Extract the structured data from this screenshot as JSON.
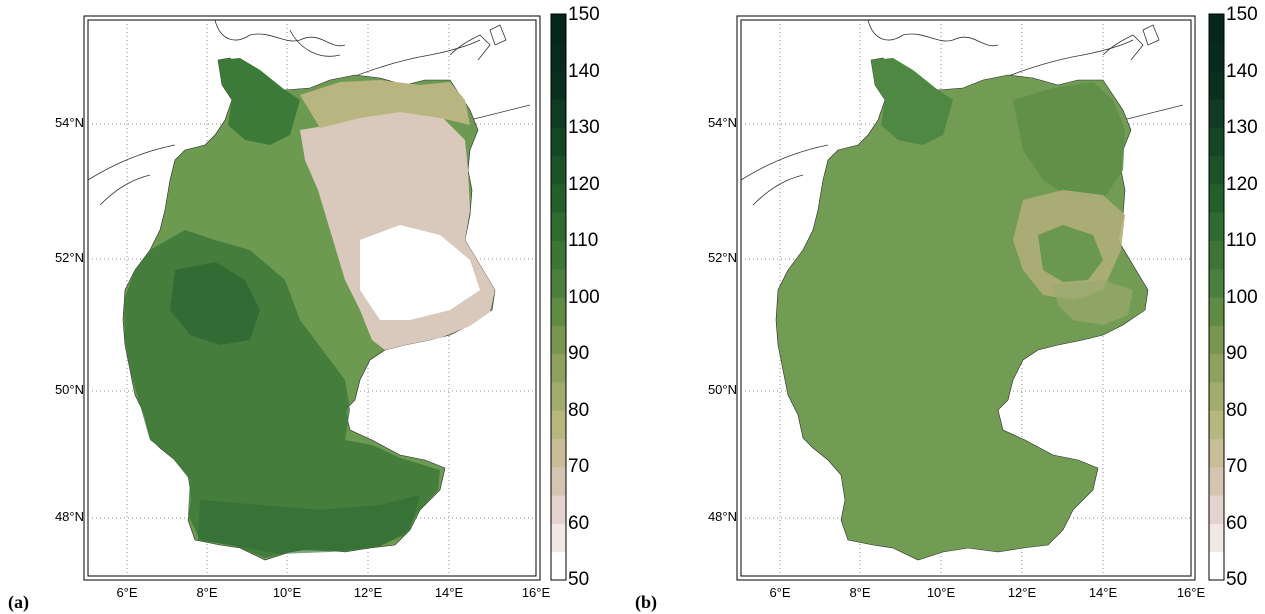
{
  "panels": [
    {
      "label": "(a)",
      "lat_ticks": [
        "54°N",
        "52°N",
        "50°N",
        "48°N"
      ],
      "lon_ticks": [
        "6°E",
        "8°E",
        "10°E",
        "12°E",
        "14°E",
        "16°E"
      ],
      "colorbar_ticks": [
        "150",
        "140",
        "130",
        "120",
        "110",
        "100",
        "90",
        "80",
        "70",
        "60",
        "50"
      ]
    },
    {
      "label": "(b)",
      "lat_ticks": [
        "54°N",
        "52°N",
        "50°N",
        "48°N"
      ],
      "lon_ticks": [
        "6°E",
        "8°E",
        "10°E",
        "12°E",
        "14°E",
        "16°E"
      ],
      "colorbar_ticks": [
        "150",
        "140",
        "130",
        "120",
        "110",
        "100",
        "90",
        "80",
        "70",
        "60",
        "50"
      ]
    }
  ],
  "colorbar_colors": [
    "#ffffff",
    "#f1e7e4",
    "#e4d2cc",
    "#d6c4b2",
    "#c9bc98",
    "#b8b67f",
    "#a3ab6d",
    "#8ea25e",
    "#77974f",
    "#5f8b45",
    "#4a7f3d",
    "#3c7535",
    "#2f6a30",
    "#245e2a",
    "#1c5227",
    "#154624",
    "#103a22",
    "#0b2f1f",
    "#082a1d",
    "#06261b"
  ]
}
